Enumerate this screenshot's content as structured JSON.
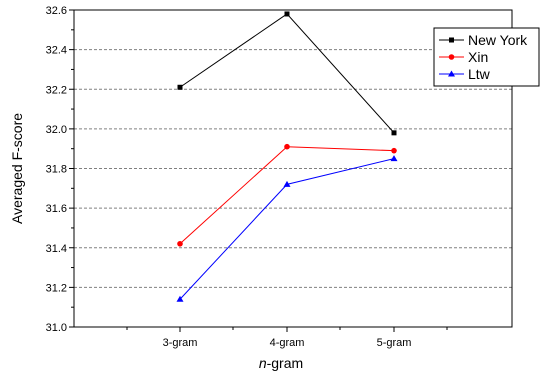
{
  "chart_data": {
    "type": "line",
    "categories": [
      "3-gram",
      "4-gram",
      "5-gram"
    ],
    "series": [
      {
        "name": "New York",
        "values": [
          32.21,
          32.58,
          31.98
        ],
        "color": "#000000",
        "marker": "square"
      },
      {
        "name": "Xin",
        "values": [
          31.42,
          31.91,
          31.89
        ],
        "color": "#ff0000",
        "marker": "circle"
      },
      {
        "name": "Ltw",
        "values": [
          31.14,
          31.72,
          31.85
        ],
        "color": "#0000ff",
        "marker": "triangle"
      }
    ],
    "xlabel_prefix": "n",
    "xlabel_suffix": "-gram",
    "ylabel": "Averaged F-score",
    "ylim": [
      31.0,
      32.6
    ],
    "yticks": [
      "31.0",
      "31.2",
      "31.4",
      "31.6",
      "31.8",
      "32.0",
      "32.2",
      "32.4",
      "32.6"
    ],
    "grid": true,
    "grid_style": "dashed horizontal",
    "legend_position": "top-right"
  }
}
